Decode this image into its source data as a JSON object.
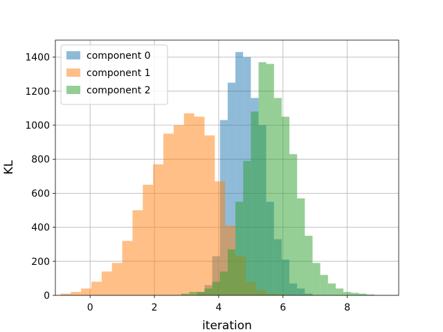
{
  "chart_data": {
    "type": "bar",
    "title": "",
    "xlabel": "iteration",
    "ylabel": "KL",
    "xlim": [
      -1.08,
      9.6
    ],
    "ylim": [
      0,
      1500
    ],
    "xticks": [
      0,
      2,
      4,
      6,
      8
    ],
    "yticks": [
      0,
      200,
      400,
      600,
      800,
      1000,
      1200,
      1400
    ],
    "grid": true,
    "legend_position": "top-left",
    "series": [
      {
        "name": "component 0",
        "color": "#1f77b4",
        "opacity": 0.5,
        "bin_edges": [
          3.08,
          3.32,
          3.56,
          3.8,
          4.04,
          4.28,
          4.52,
          4.76,
          5.0,
          5.24,
          5.48,
          5.72,
          5.96,
          6.2,
          6.44,
          6.68,
          6.92
        ],
        "counts": [
          0,
          20,
          60,
          230,
          1030,
          1250,
          1430,
          1400,
          1160,
          1000,
          550,
          330,
          210,
          70,
          40,
          10
        ]
      },
      {
        "name": "component 1",
        "color": "#ff7f0e",
        "opacity": 0.5,
        "bin_edges": [
          -0.92,
          -0.6,
          -0.28,
          0.04,
          0.36,
          0.68,
          1.0,
          1.32,
          1.64,
          1.96,
          2.28,
          2.6,
          2.92,
          3.24,
          3.56,
          3.88,
          4.2,
          4.52,
          4.84,
          5.16,
          5.48,
          5.8,
          6.12
        ],
        "counts": [
          10,
          20,
          40,
          80,
          140,
          190,
          320,
          500,
          650,
          770,
          950,
          1000,
          1070,
          1050,
          940,
          670,
          410,
          230,
          80,
          30,
          10,
          5
        ]
      },
      {
        "name": "component 2",
        "color": "#2ca02c",
        "opacity": 0.5,
        "bin_edges": [
          2.84,
          3.08,
          3.32,
          3.56,
          3.8,
          4.04,
          4.28,
          4.52,
          4.76,
          5.0,
          5.24,
          5.48,
          5.72,
          5.96,
          6.2,
          6.44,
          6.68,
          6.92,
          7.16,
          7.4,
          7.64,
          7.88,
          8.12,
          8.36,
          8.6,
          8.84
        ],
        "counts": [
          10,
          20,
          20,
          40,
          80,
          140,
          270,
          550,
          790,
          1080,
          1370,
          1360,
          1160,
          1050,
          830,
          570,
          350,
          190,
          120,
          70,
          40,
          20,
          15,
          10,
          5
        ]
      }
    ]
  }
}
